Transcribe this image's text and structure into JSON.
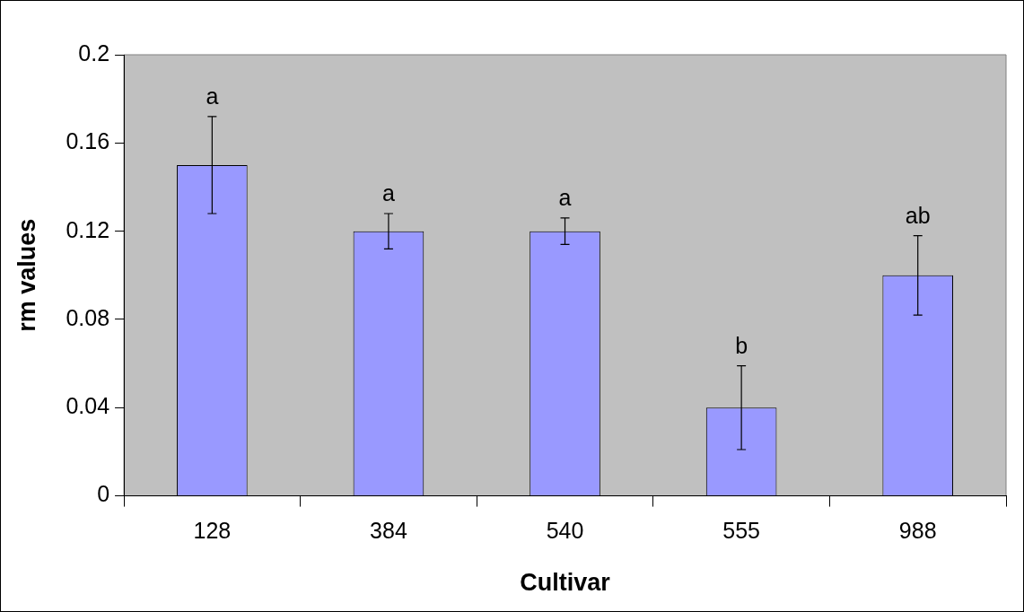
{
  "chart_data": {
    "type": "bar",
    "xlabel": "Cultivar",
    "ylabel": "rm values",
    "categories": [
      "128",
      "384",
      "540",
      "555",
      "988"
    ],
    "values": [
      0.15,
      0.12,
      0.12,
      0.04,
      0.1
    ],
    "errors": [
      0.022,
      0.008,
      0.006,
      0.019,
      0.018
    ],
    "color": "#9999ff",
    "ylim": [
      0,
      0.2
    ],
    "yticks": [
      0,
      0.04,
      0.08,
      0.12,
      0.16,
      0.2
    ],
    "grid": false,
    "legend": false,
    "annotations": [
      {
        "text": "a",
        "x": "128",
        "y": 0.172
      },
      {
        "text": "a",
        "x": "384",
        "y": 0.128
      },
      {
        "text": "a",
        "x": "540",
        "y": 0.126
      },
      {
        "text": "b",
        "x": "555",
        "y": 0.059
      },
      {
        "text": "ab",
        "x": "988",
        "y": 0.118
      }
    ]
  }
}
